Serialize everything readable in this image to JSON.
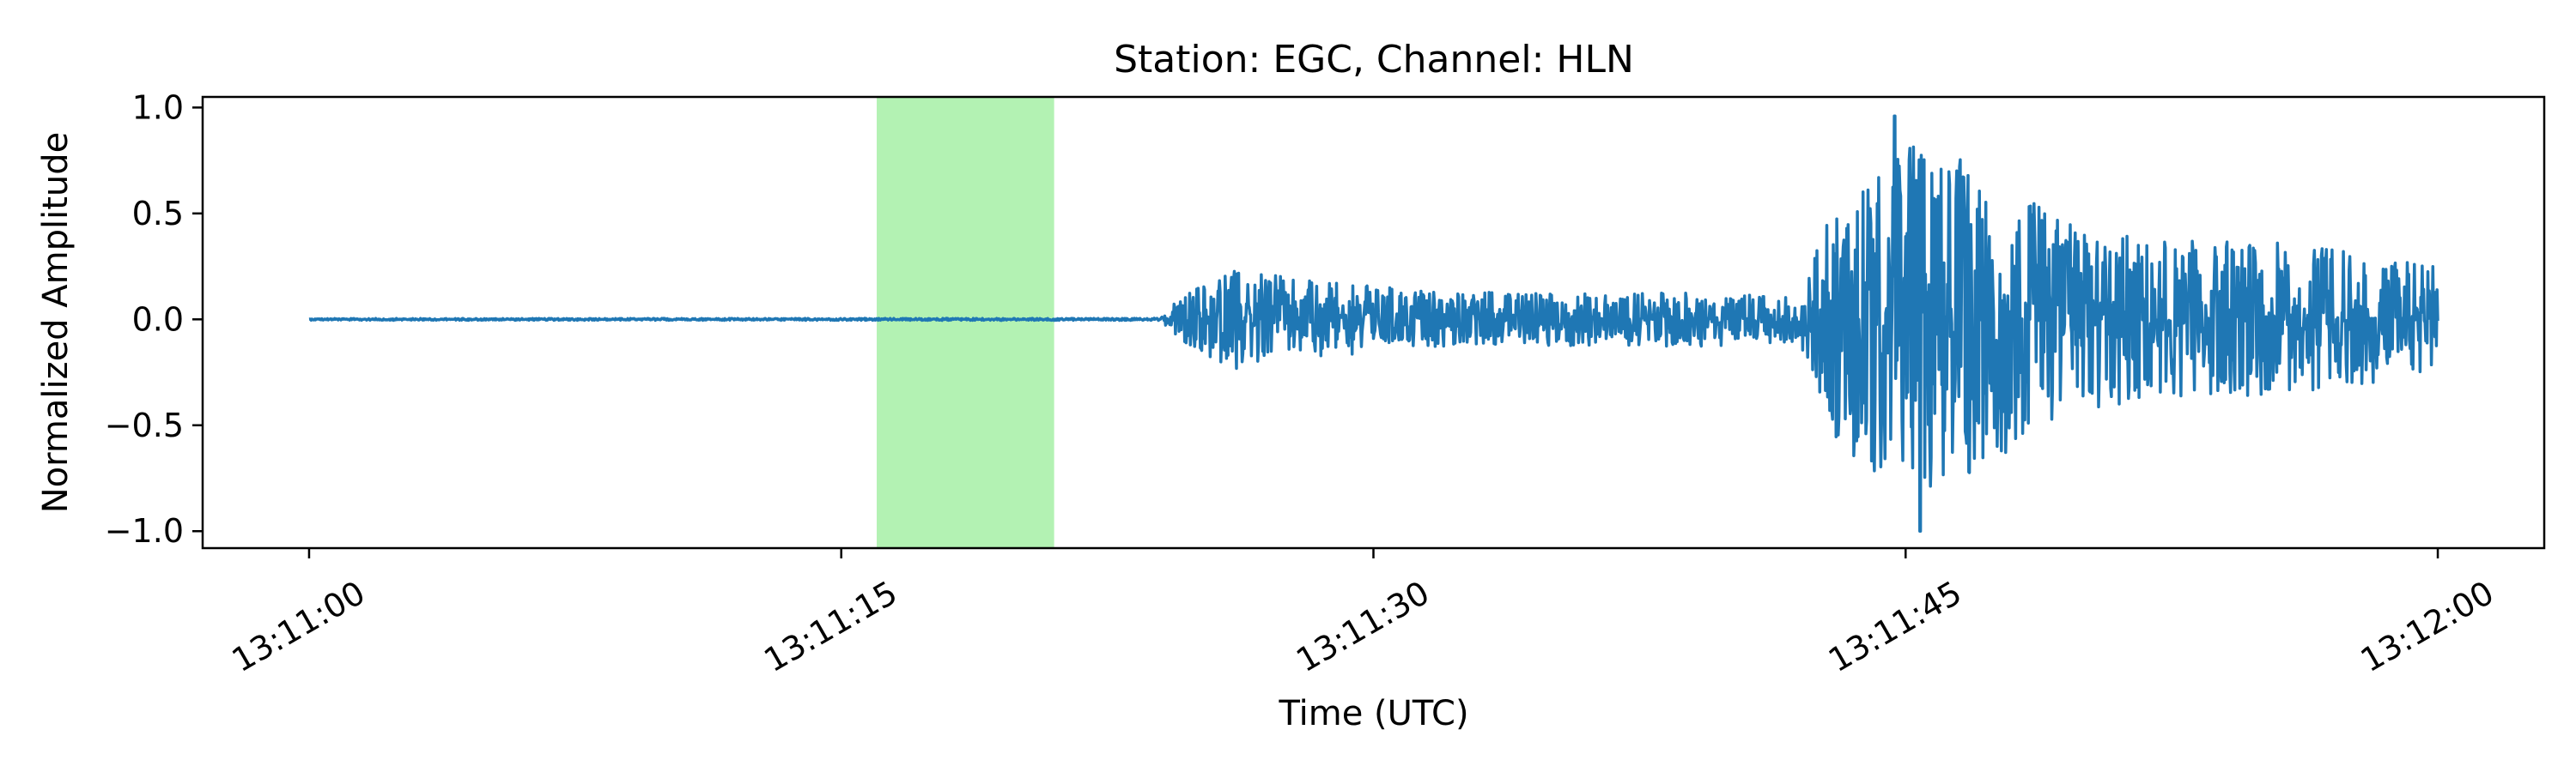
{
  "chart_data": {
    "type": "line",
    "title": "Station: EGC, Channel: HLN",
    "xlabel": "Time (UTC)",
    "ylabel": "Normalized Amplitude",
    "xlim": [
      "13:10:57",
      "13:12:03"
    ],
    "ylim": [
      -1.08,
      1.05
    ],
    "x_ticks": [
      "13:11:00",
      "13:11:15",
      "13:11:30",
      "13:11:45",
      "13:12:00"
    ],
    "y_ticks": [
      "1.0",
      "0.5",
      "0.0",
      "−0.5",
      "−1.0"
    ],
    "y_tick_values": [
      1.0,
      0.5,
      0.0,
      -0.5,
      -1.0
    ],
    "grid": false,
    "highlight_span": {
      "start": "13:11:16",
      "end": "13:11:21",
      "color": "#b3f2b3"
    },
    "series": [
      {
        "color": "#1f77b4",
        "x_start": "13:11:00",
        "x_end": "13:12:00",
        "envelope": [
          {
            "t": "13:11:00",
            "amp": 0.005
          },
          {
            "t": "13:11:24",
            "amp": 0.006
          },
          {
            "t": "13:11:24.5",
            "amp": 0.12
          },
          {
            "t": "13:11:26",
            "amp": 0.28
          },
          {
            "t": "13:11:28",
            "amp": 0.22
          },
          {
            "t": "13:11:32",
            "amp": 0.15
          },
          {
            "t": "13:11:40",
            "amp": 0.15
          },
          {
            "t": "13:11:42",
            "amp": 0.12
          },
          {
            "t": "13:11:43",
            "amp": 0.65
          },
          {
            "t": "13:11:44.5",
            "amp": 0.95
          },
          {
            "t": "13:11:45.5",
            "amp": 1.0
          },
          {
            "t": "13:11:47",
            "amp": 0.85
          },
          {
            "t": "13:11:49",
            "amp": 0.6
          },
          {
            "t": "13:11:52",
            "amp": 0.45
          },
          {
            "t": "13:11:56",
            "amp": 0.42
          },
          {
            "t": "13:12:00",
            "amp": 0.3
          }
        ],
        "peak_min": {
          "t": "13:11:45.4",
          "value": -1.0
        },
        "peak_max": {
          "t": "13:11:44.7",
          "value": 0.96
        }
      }
    ]
  }
}
